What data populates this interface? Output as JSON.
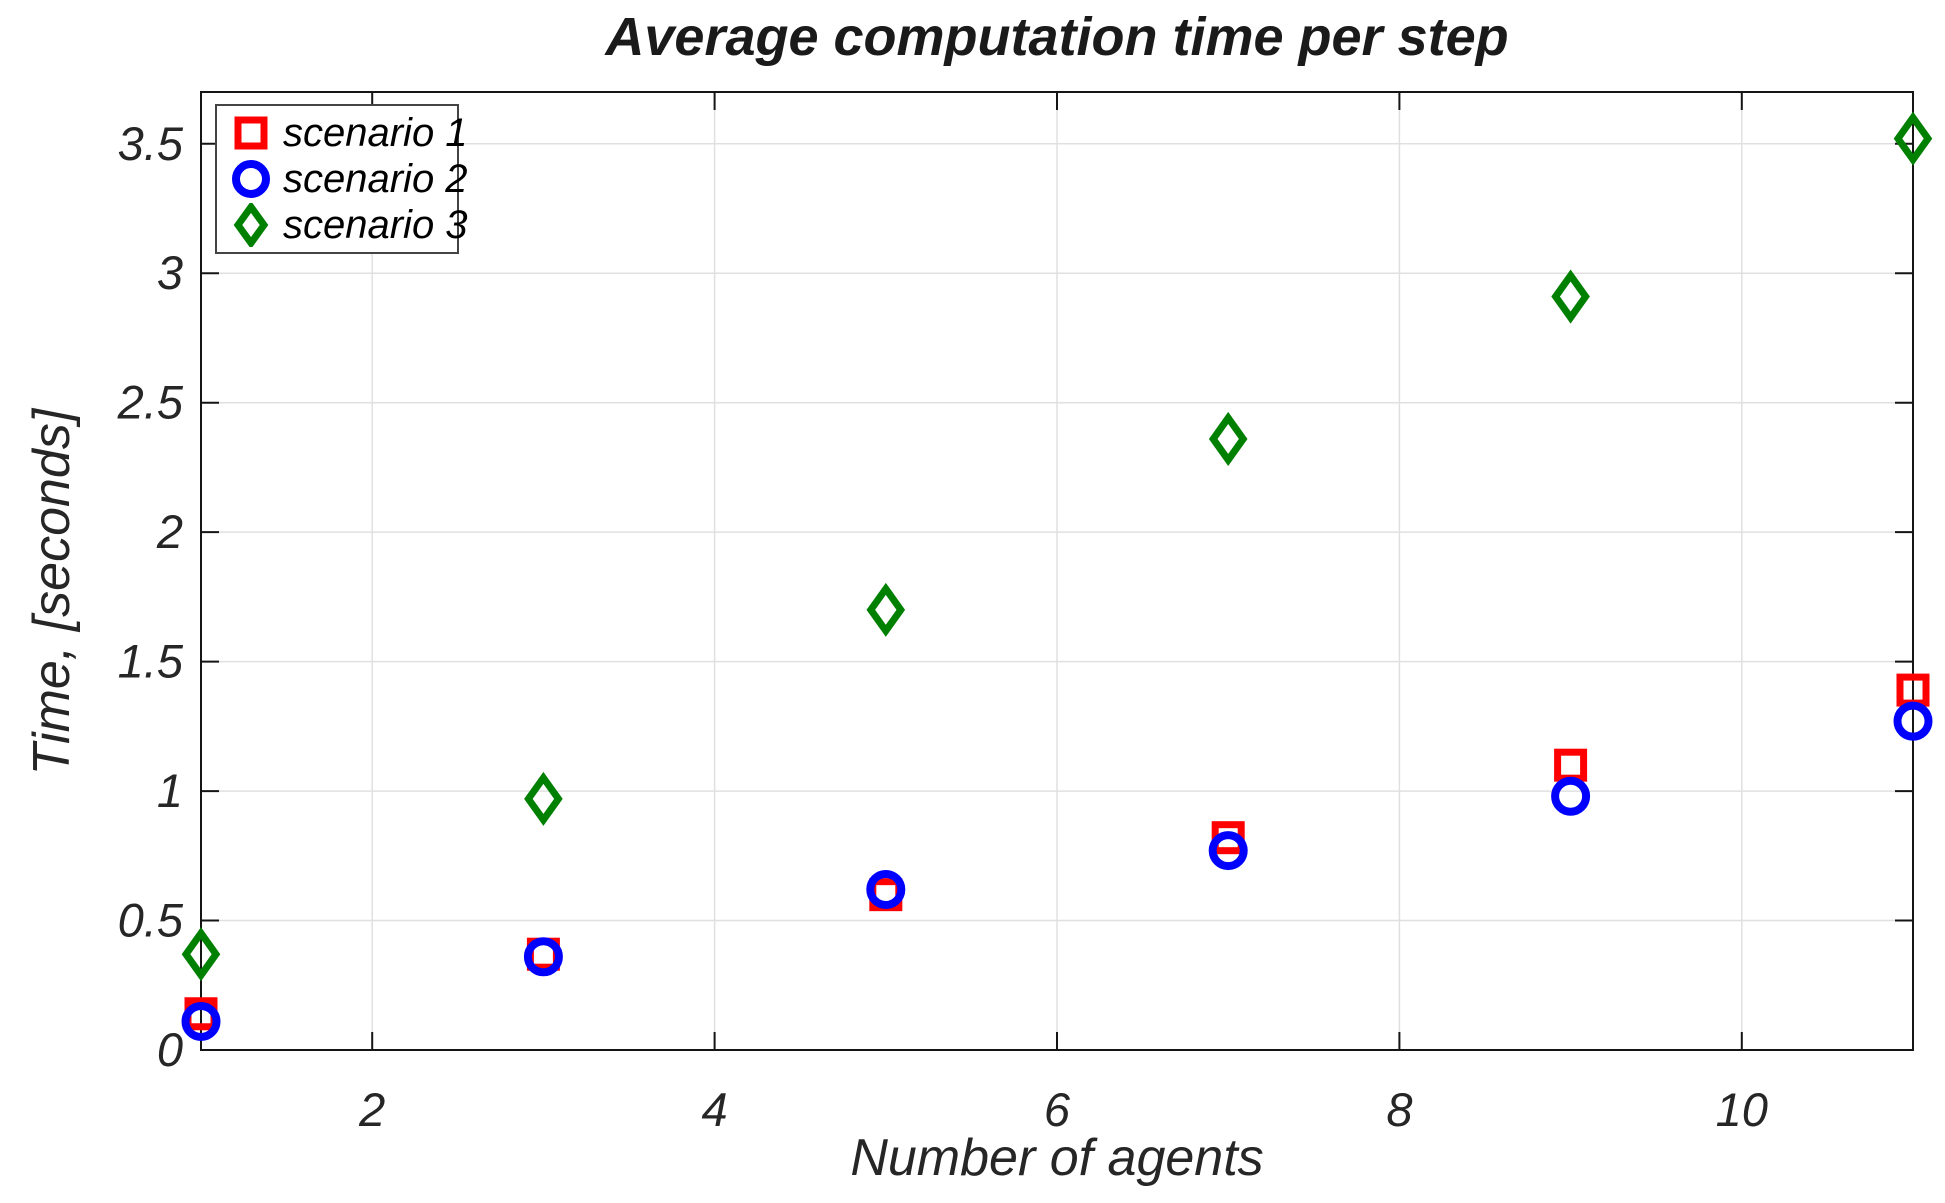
{
  "chart_data": {
    "type": "scatter",
    "title": "Average computation time per step",
    "xlabel": "Number of agents",
    "ylabel": "Time, [seconds]",
    "xlim": [
      1,
      11
    ],
    "ylim": [
      0,
      3.7
    ],
    "x_tick_values": [
      2,
      4,
      6,
      8,
      10
    ],
    "x_tick_labels": [
      "2",
      "4",
      "6",
      "8",
      "10"
    ],
    "y_tick_values": [
      0,
      0.5,
      1,
      1.5,
      2,
      2.5,
      3,
      3.5
    ],
    "y_tick_labels": [
      "0",
      "0.5",
      "1",
      "1.5",
      "2",
      "2.5",
      "3",
      "3.5"
    ],
    "grid": true,
    "legend_position": "top-left",
    "x": [
      1,
      3,
      5,
      7,
      9,
      11
    ],
    "series": [
      {
        "name": "scenario 1",
        "marker": "square",
        "color": "#FF0000",
        "values": [
          0.14,
          0.37,
          0.6,
          0.82,
          1.1,
          1.39
        ]
      },
      {
        "name": "scenario 2",
        "marker": "circle",
        "color": "#0000FF",
        "values": [
          0.11,
          0.36,
          0.62,
          0.77,
          0.98,
          1.27
        ]
      },
      {
        "name": "scenario 3",
        "marker": "diamond",
        "color": "#008000",
        "values": [
          0.37,
          0.97,
          1.7,
          2.36,
          2.91,
          3.52
        ]
      }
    ],
    "colors": {
      "axis": "#151515",
      "tick_label": "#262626",
      "grid": "#E0E0E0",
      "background": "#FFFFFF"
    }
  }
}
